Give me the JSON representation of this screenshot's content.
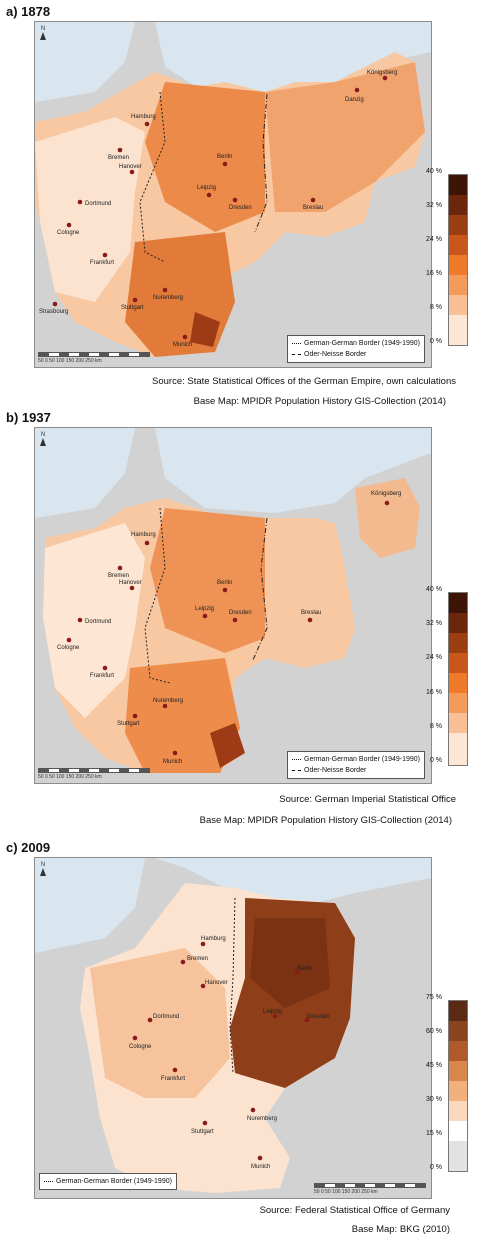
{
  "panels": [
    {
      "title": "a) 1878",
      "legend": {
        "line1": "German-German Border (1949-1990)",
        "line2": "Oder-Neisse Border"
      },
      "scale_ticks": [
        "40 %",
        "32 %",
        "24 %",
        "16 %",
        "8 %",
        "0 %"
      ],
      "scale_bar": "50  0  50  100  150  200  250 km",
      "source": "Source: State Statistical Offices of the German Empire, own calculations",
      "basemap": "Base Map: MPIDR Population History GIS-Collection (2014)",
      "cities": [
        "Hamburg",
        "Bremen",
        "Hanover",
        "Dortmund",
        "Cologne",
        "Frankfurt",
        "Strasbourg",
        "Stuttgart",
        "Nuremberg",
        "Munich",
        "Berlin",
        "Leipzig",
        "Dresden",
        "Breslau",
        "Danzig",
        "Königsberg"
      ]
    },
    {
      "title": "b) 1937",
      "legend": {
        "line1": "German-German Border (1949-1990)",
        "line2": "Oder-Neisse Border"
      },
      "scale_ticks": [
        "40 %",
        "32 %",
        "24 %",
        "16 %",
        "8 %",
        "0 %"
      ],
      "scale_bar": "50  0  50  100  150  200  250 km",
      "source": "Source: German Imperial Statistical Office",
      "basemap": "Base Map: MPIDR Population History GIS-Collection (2014)",
      "cities": [
        "Hamburg",
        "Bremen",
        "Hanover",
        "Dortmund",
        "Cologne",
        "Frankfurt",
        "Stuttgart",
        "Nuremberg",
        "Munich",
        "Berlin",
        "Leipzig",
        "Dresden",
        "Breslau",
        "Königsberg"
      ]
    },
    {
      "title": "c) 2009",
      "legend": {
        "line1": "German-German Border (1949-1990)"
      },
      "scale_ticks": [
        "75 %",
        "60 %",
        "45 %",
        "30 %",
        "15 %",
        "0 %"
      ],
      "scale_bar": "50  0  50  100  150  200  250 km",
      "source": "Source: Federal Statistical Office of Germany",
      "basemap": "Base Map: BKG (2010)",
      "cities": [
        "Hamburg",
        "Bremen",
        "Hanover",
        "Dortmund",
        "Cologne",
        "Frankfurt",
        "Stuttgart",
        "Nuremberg",
        "Munich",
        "Berlin",
        "Leipzig",
        "Dresden"
      ]
    }
  ],
  "north_label": "N",
  "colors": {
    "sea": "#d9e6ef",
    "land_outside": "#d2d2d2",
    "city_dot": "#8b1a1a",
    "dark": "#4a1f0c"
  }
}
